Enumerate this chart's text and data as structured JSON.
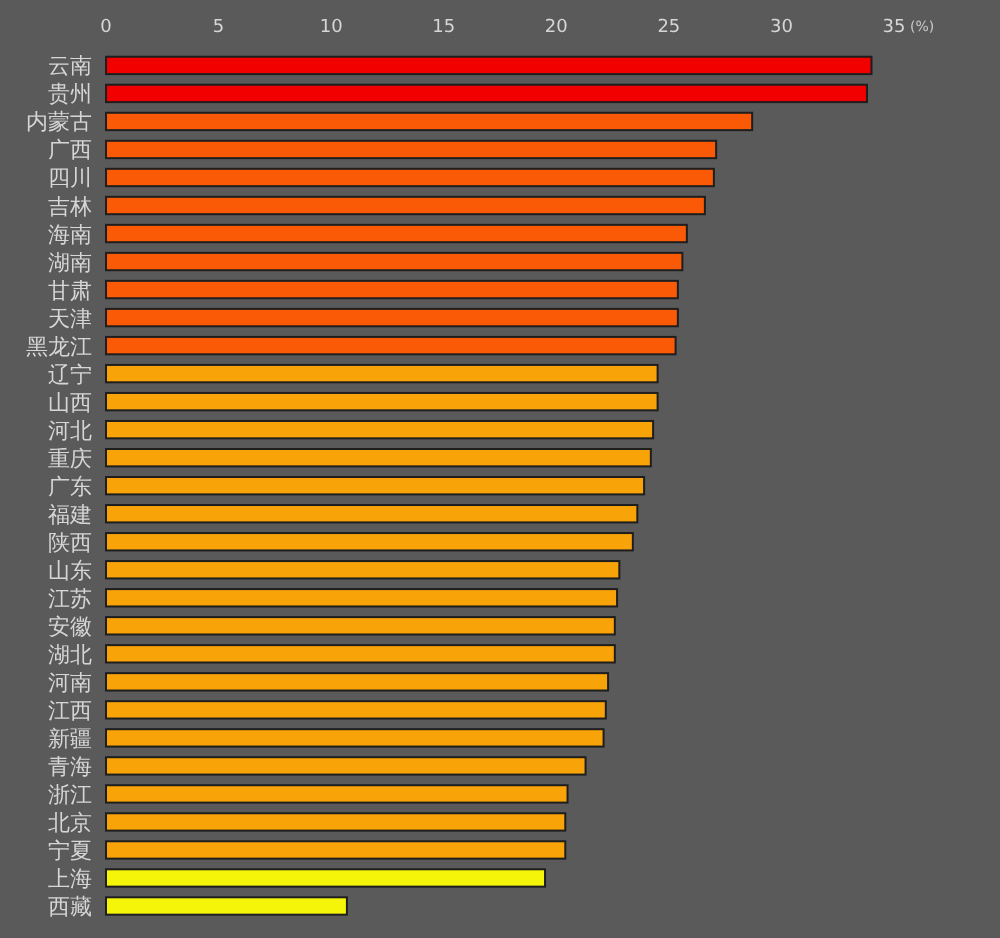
{
  "chart_data": {
    "type": "bar",
    "orientation": "horizontal",
    "xlabel": "(%)",
    "categories": [
      "云南",
      "贵州",
      "内蒙古",
      "广西",
      "四川",
      "吉林",
      "海南",
      "湖南",
      "甘肃",
      "天津",
      "黑龙江",
      "辽宁",
      "山西",
      "河北",
      "重庆",
      "广东",
      "福建",
      "陕西",
      "山东",
      "江苏",
      "安徽",
      "湖北",
      "河南",
      "江西",
      "新疆",
      "青海",
      "浙江",
      "北京",
      "宁夏",
      "上海",
      "西藏"
    ],
    "values": [
      34.0,
      33.8,
      28.7,
      27.1,
      27.0,
      26.6,
      25.8,
      25.6,
      25.4,
      25.4,
      25.3,
      24.5,
      24.5,
      24.3,
      24.2,
      23.9,
      23.6,
      23.4,
      22.8,
      22.7,
      22.6,
      22.6,
      22.3,
      22.2,
      22.1,
      21.3,
      20.5,
      20.4,
      20.4,
      19.5,
      10.7
    ],
    "colors": [
      "#f20000",
      "#f20000",
      "#fa5a05",
      "#fa5a05",
      "#fa5a05",
      "#fa5a05",
      "#fa5a05",
      "#fa5a05",
      "#fa5a05",
      "#fa5a05",
      "#fa5a05",
      "#f8a308",
      "#f8a308",
      "#f8a308",
      "#f8a308",
      "#f8a308",
      "#f8a308",
      "#f8a308",
      "#f8a308",
      "#f8a308",
      "#f8a308",
      "#f8a308",
      "#f8a308",
      "#f8a308",
      "#f8a308",
      "#f8a308",
      "#f8a308",
      "#f8a308",
      "#f8a308",
      "#f5f50a",
      "#f5f50a"
    ],
    "xlim": [
      0,
      35
    ],
    "xticks": [
      0,
      5,
      10,
      15,
      20,
      25,
      30,
      35
    ]
  }
}
